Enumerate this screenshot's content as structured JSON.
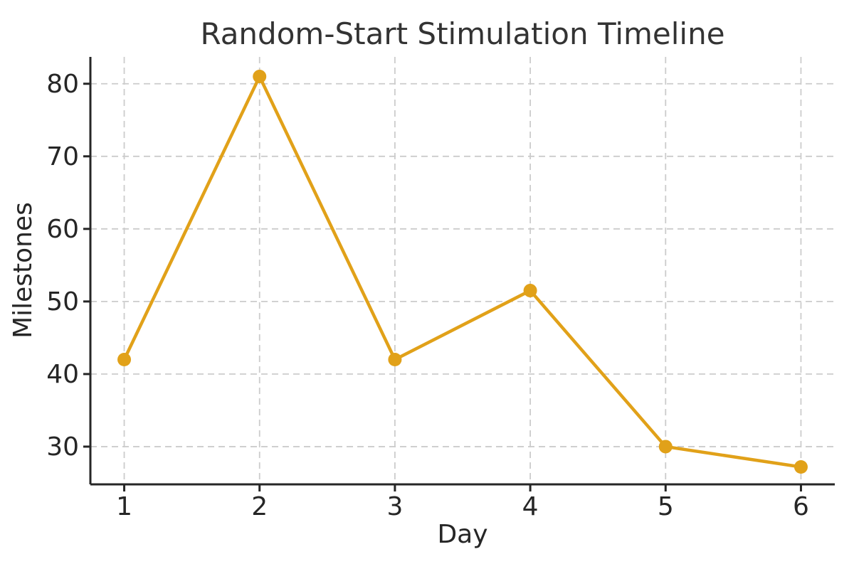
{
  "figure": {
    "background": "#ffffff"
  },
  "chart_data": {
    "type": "line",
    "title": "Random-Start Stimulation Timeline",
    "xlabel": "Day",
    "ylabel": "Milestones",
    "x": [
      1,
      2,
      3,
      4,
      5,
      6
    ],
    "series": [
      {
        "name": "Milestones",
        "values": [
          42,
          81,
          42,
          51.5,
          30,
          27.2
        ]
      }
    ],
    "xticks": [
      "1",
      "2",
      "3",
      "4",
      "5",
      "6"
    ],
    "yticks": [
      30,
      40,
      50,
      60,
      70,
      80
    ],
    "xlim": [
      0.75,
      6.25
    ],
    "ylim": [
      24.8,
      83.7
    ],
    "grid": true,
    "grid_style": "dashed",
    "legend_position": "none",
    "colors": {
      "line": "#E1A119",
      "marker": "#E1A119",
      "axis": "#262626",
      "grid": "#cccccc",
      "title": "#333333"
    }
  }
}
